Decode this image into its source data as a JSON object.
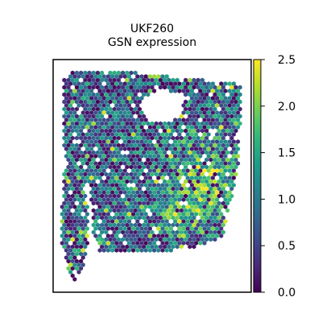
{
  "chart_data": {
    "type": "scatter",
    "title": "UKF260",
    "subtitle": "GSN expression",
    "xlabel": "",
    "ylabel": "",
    "grid": false,
    "axes_ticks": false,
    "colormap": "viridis",
    "colormap_stops": [
      "#440154",
      "#482878",
      "#3e4989",
      "#31688e",
      "#26828e",
      "#1f9e89",
      "#35b779",
      "#6ece58",
      "#b5de2b",
      "#fde725"
    ],
    "colorbar": {
      "range": [
        0,
        2.5
      ],
      "ticks": [
        0.0,
        0.5,
        1.0,
        1.5,
        2.0,
        2.5
      ],
      "tick_labels": [
        "0.0",
        "0.5",
        "1.0",
        "1.5",
        "2.0",
        "2.5"
      ],
      "placement": "right"
    },
    "series": [
      {
        "name": "",
        "marker": "hexagon",
        "description_of_regions": [
          {
            "region": "main tissue block",
            "typical_value": 0.9
          },
          {
            "region": "lower-right cluster",
            "typical_value": 1.8
          },
          {
            "region": "left strip",
            "typical_value": 0.9
          }
        ]
      }
    ]
  }
}
